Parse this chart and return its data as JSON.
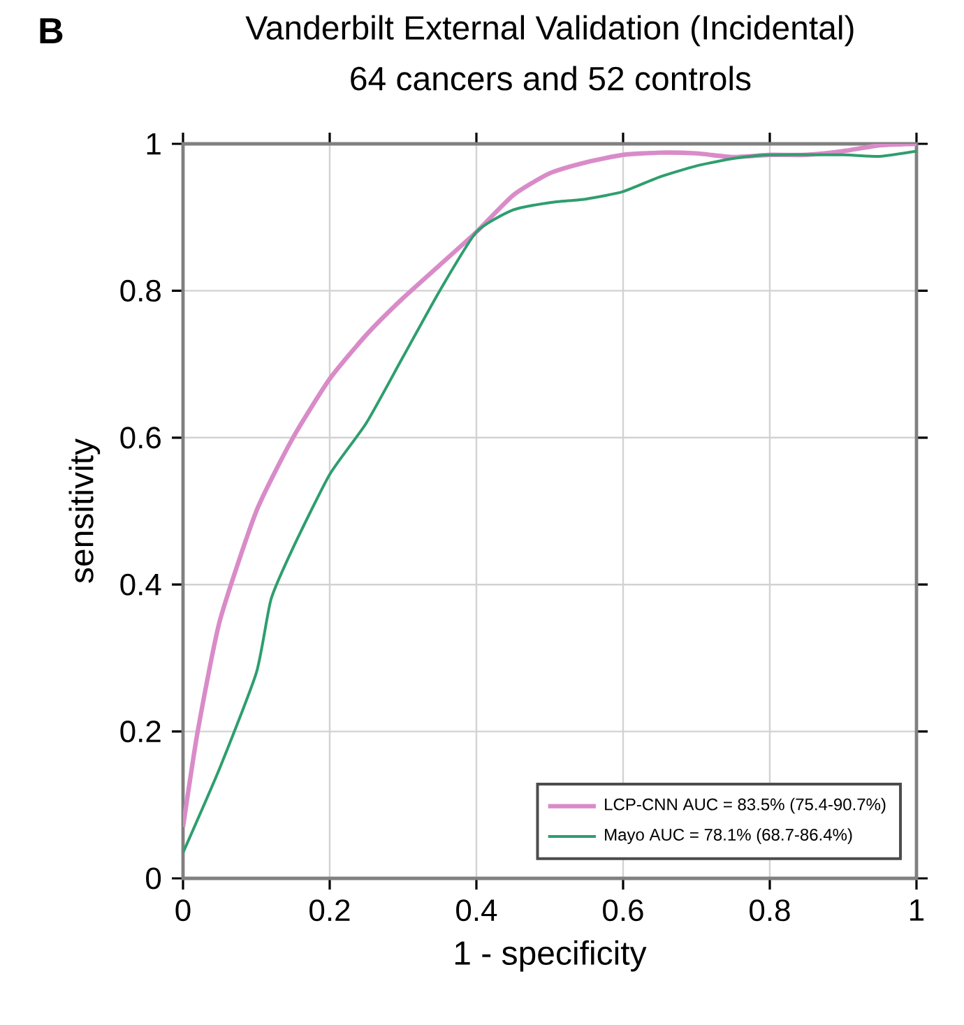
{
  "chart_data": {
    "type": "line",
    "title": "Vanderbilt External Validation (Incidental)",
    "subtitle": "64 cancers and 52 controls",
    "xlabel": "1 - specificity",
    "ylabel": "sensitivity",
    "annotations": [
      "B"
    ],
    "xlim": [
      0,
      1
    ],
    "ylim": [
      0,
      1
    ],
    "xticks": [
      0,
      0.2,
      0.4,
      0.6,
      0.8,
      1
    ],
    "yticks": [
      0,
      0.2,
      0.4,
      0.6,
      0.8,
      1
    ],
    "grid": true,
    "legend": "bottom right",
    "series": [
      {
        "name": "LCP-CNN AUC = 83.5% (75.4-90.7%)",
        "color": "#d98bc8",
        "x": [
          0,
          0.02,
          0.05,
          0.1,
          0.15,
          0.2,
          0.25,
          0.3,
          0.35,
          0.4,
          0.45,
          0.5,
          0.55,
          0.6,
          0.65,
          0.7,
          0.75,
          0.8,
          0.85,
          0.9,
          0.95,
          1
        ],
        "values": [
          0.07,
          0.2,
          0.35,
          0.5,
          0.6,
          0.68,
          0.74,
          0.79,
          0.835,
          0.88,
          0.93,
          0.96,
          0.975,
          0.985,
          0.988,
          0.987,
          0.982,
          0.985,
          0.985,
          0.99,
          0.998,
          1
        ]
      },
      {
        "name": "Mayo AUC = 78.1% (68.7-86.4%)",
        "color": "#2e9e6e",
        "x": [
          0,
          0.05,
          0.1,
          0.12,
          0.15,
          0.2,
          0.25,
          0.3,
          0.35,
          0.4,
          0.45,
          0.5,
          0.55,
          0.6,
          0.65,
          0.7,
          0.75,
          0.8,
          0.9,
          0.95,
          1
        ],
        "values": [
          0.035,
          0.15,
          0.28,
          0.38,
          0.45,
          0.55,
          0.62,
          0.71,
          0.8,
          0.88,
          0.91,
          0.92,
          0.925,
          0.935,
          0.955,
          0.97,
          0.98,
          0.985,
          0.985,
          0.983,
          0.99
        ]
      }
    ]
  }
}
